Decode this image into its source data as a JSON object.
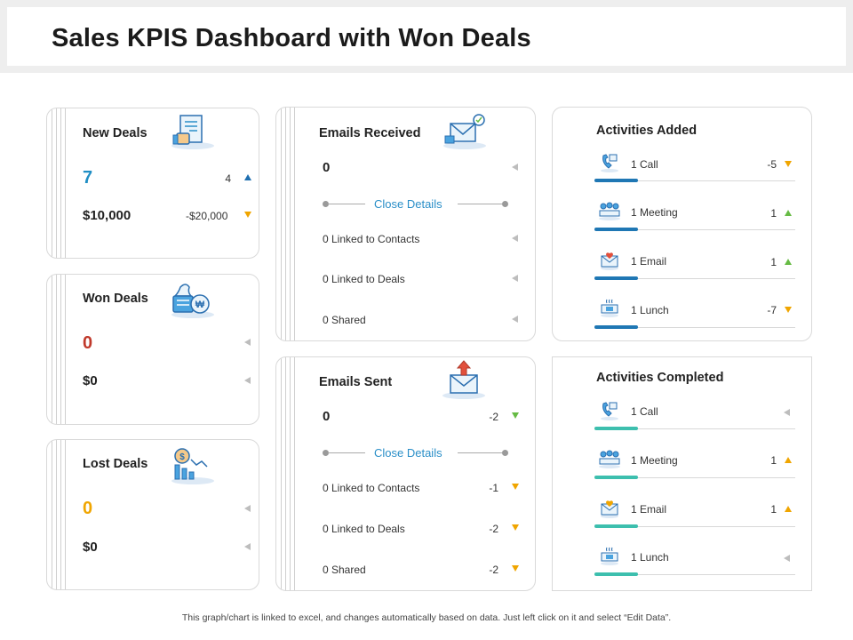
{
  "page": {
    "title": "Sales KPIS Dashboard with Won Deals",
    "footnote": "This graph/chart is linked to excel, and changes automatically based on data. Just left click on it and select “Edit Data”."
  },
  "colors": {
    "accent_blue": "#1f77b4",
    "teal": "#3dbfae",
    "won_red": "#c0392b",
    "lost_amber": "#f0a500",
    "new_blue": "#1f8ec4"
  },
  "new_deals": {
    "title": "New Deals",
    "count": "7",
    "count_delta": "4",
    "amount": "$10,000",
    "amount_delta": "-$20,000",
    "icon": "thumbs-up-document-icon"
  },
  "won_deals": {
    "title": "Won Deals",
    "count": "0",
    "amount": "$0",
    "icon": "money-bag-icon"
  },
  "lost_deals": {
    "title": "Lost Deals",
    "count": "0",
    "amount": "$0",
    "icon": "chart-coin-icon"
  },
  "emails_received": {
    "title": "Emails Received",
    "count": "0",
    "close_label": "Close Details",
    "rows": [
      {
        "label": "0 Linked to Contacts"
      },
      {
        "label": "0 Linked to Deals"
      },
      {
        "label": "0 Shared"
      }
    ]
  },
  "emails_sent": {
    "title": "Emails Sent",
    "count": "0",
    "count_delta": "-2",
    "close_label": "Close Details",
    "rows": [
      {
        "label": "0 Linked to Contacts",
        "delta": "-1"
      },
      {
        "label": "0 Linked to Deals",
        "delta": "-2"
      },
      {
        "label": "0 Shared",
        "delta": "-2"
      }
    ]
  },
  "activities_added": {
    "title": "Activities Added",
    "items": [
      {
        "label": "1 Call",
        "delta": "-5",
        "dir": "down"
      },
      {
        "label": "1 Meeting",
        "delta": "1",
        "dir": "up"
      },
      {
        "label": "1 Email",
        "delta": "1",
        "dir": "up"
      },
      {
        "label": "1 Lunch",
        "delta": "-7",
        "dir": "down"
      }
    ]
  },
  "activities_completed": {
    "title": "Activities Completed",
    "items": [
      {
        "label": "1 Call",
        "delta": "",
        "dir": "none"
      },
      {
        "label": "1 Meeting",
        "delta": "1",
        "dir": "up"
      },
      {
        "label": "1 Email",
        "delta": "1",
        "dir": "up"
      },
      {
        "label": "1 Lunch",
        "delta": "",
        "dir": "none"
      }
    ]
  }
}
